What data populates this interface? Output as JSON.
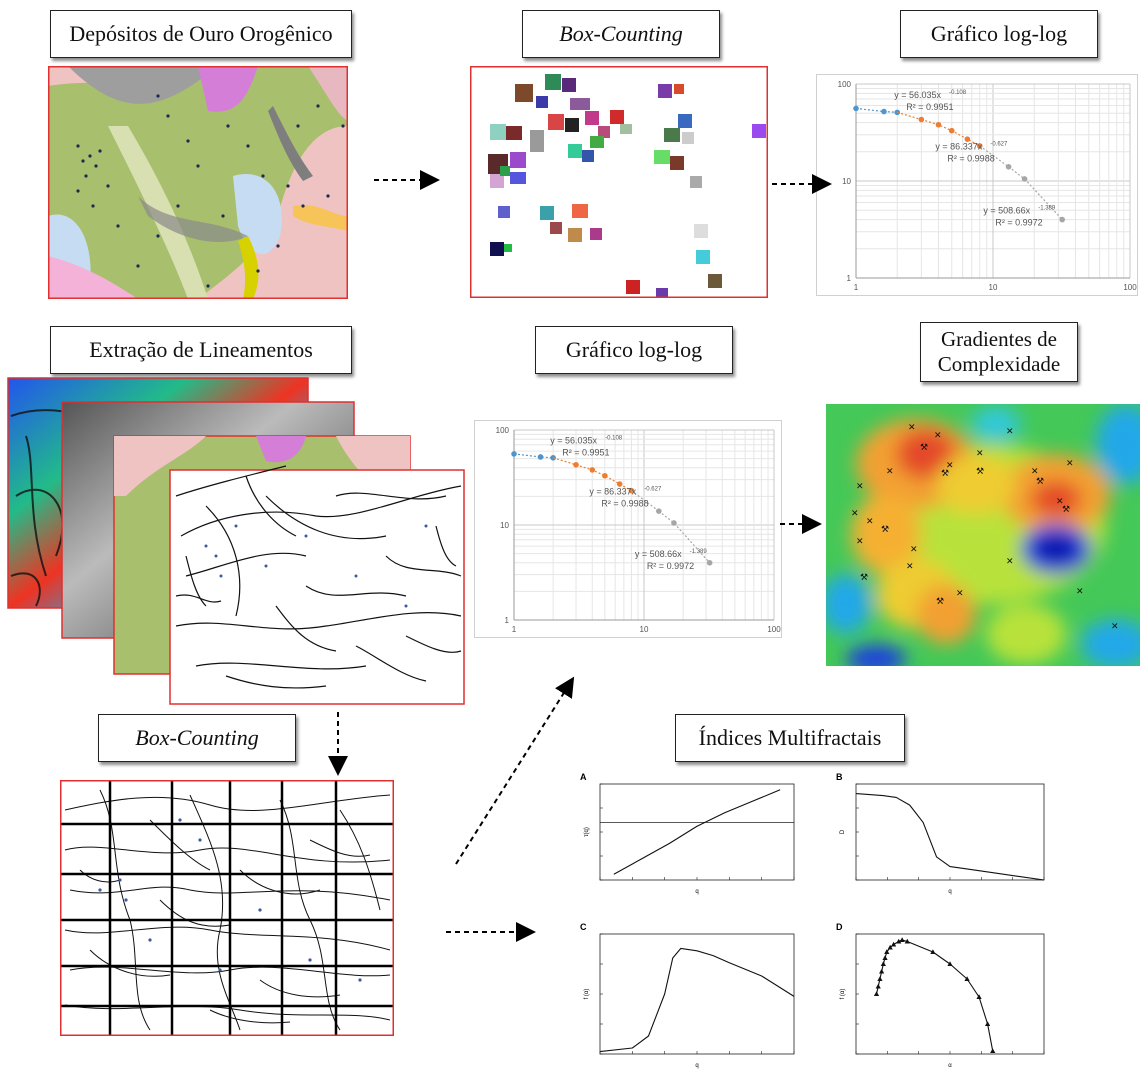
{
  "titles": {
    "deposits": "Depósitos de Ouro Orogênico",
    "box_counting_top": "Box-Counting",
    "loglog_top": "Gráfico log-log",
    "lineaments": "Extração de Lineamentos",
    "loglog_middle": "Gráfico log-log",
    "complexity": "Gradientes de Complexidade",
    "box_counting_bottom": "Box-Counting",
    "multifractal": "Índices Multifractais"
  },
  "colors": {
    "frame_red": "#e03030",
    "series_blue": "#4f94cd",
    "series_orange": "#ed7d31",
    "series_gray": "#a6a6a6",
    "geo_green": "#a8bf6e",
    "geo_pink": "#f0c3c3",
    "geo_magenta": "#d47ed8",
    "heat_red": "#e44a2a",
    "heat_blue": "#1030d0"
  },
  "chart_data": [
    {
      "type": "line",
      "scale": "log-log",
      "xlim": [
        1,
        100
      ],
      "ylim": [
        1,
        100
      ],
      "x_ticks": [
        "1",
        "10",
        "100"
      ],
      "y_ticks": [
        "1",
        "10",
        "100"
      ],
      "grid": true,
      "series": [
        {
          "x": [
            1,
            1.6,
            2
          ],
          "y": [
            56,
            52,
            51
          ]
        },
        {
          "x": [
            3,
            4,
            5,
            6.5,
            8
          ],
          "y": [
            43,
            38,
            33,
            27,
            23
          ]
        },
        {
          "x": [
            13,
            17,
            32
          ],
          "y": [
            14,
            10.5,
            4
          ]
        }
      ],
      "annotations": [
        {
          "eq": "y = 56.035x",
          "exp": "-0.108",
          "r2": "R² = 0.9951"
        },
        {
          "eq": "y = 86.337x",
          "exp": "-0.627",
          "r2": "R² = 0.9988"
        },
        {
          "eq": "y = 508.66x",
          "exp": "-1.389",
          "r2": "R² = 0.9972"
        }
      ]
    },
    {
      "type": "line",
      "panel": "A",
      "xlabel": "q",
      "ylabel": "τ(q)",
      "xlim": [
        -7,
        7
      ],
      "ylim": [
        -15,
        10
      ],
      "x": [
        -6,
        -4,
        -2,
        0,
        2,
        4,
        6
      ],
      "y": [
        -13.5,
        -9.5,
        -5.5,
        -1,
        2.5,
        5.5,
        8.5
      ]
    },
    {
      "type": "line",
      "panel": "B",
      "xlabel": "q",
      "ylabel": "D",
      "xlim": [
        -7,
        7
      ],
      "ylim": [
        1.8,
        2.3
      ],
      "x": [
        -7,
        -5,
        -4,
        -3,
        -2,
        -1,
        0,
        1,
        3,
        5,
        7
      ],
      "y": [
        2.25,
        2.24,
        2.23,
        2.19,
        2.1,
        1.92,
        1.87,
        1.86,
        1.84,
        1.82,
        1.8
      ]
    },
    {
      "type": "line",
      "panel": "C",
      "xlabel": "q",
      "ylabel": "f (α)",
      "xlim": [
        -6,
        6
      ],
      "ylim": [
        0.9,
        1.9
      ],
      "x": [
        -6,
        -4,
        -3,
        -2,
        -1.5,
        -1,
        0,
        1,
        2,
        4,
        6
      ],
      "y": [
        0.92,
        0.95,
        1.05,
        1.4,
        1.7,
        1.78,
        1.76,
        1.72,
        1.66,
        1.55,
        1.38
      ]
    },
    {
      "type": "scatter",
      "panel": "D",
      "xlabel": "α",
      "ylabel": "f (α)",
      "xlim": [
        1.5,
        2.6
      ],
      "ylim": [
        1.0,
        1.8
      ],
      "x": [
        1.62,
        1.63,
        1.64,
        1.65,
        1.66,
        1.67,
        1.68,
        1.7,
        1.72,
        1.75,
        1.77,
        1.8,
        1.95,
        2.05,
        2.15,
        2.22,
        2.27,
        2.3
      ],
      "y": [
        1.4,
        1.45,
        1.5,
        1.55,
        1.6,
        1.64,
        1.68,
        1.71,
        1.73,
        1.75,
        1.76,
        1.75,
        1.68,
        1.6,
        1.5,
        1.38,
        1.2,
        1.02
      ]
    }
  ]
}
